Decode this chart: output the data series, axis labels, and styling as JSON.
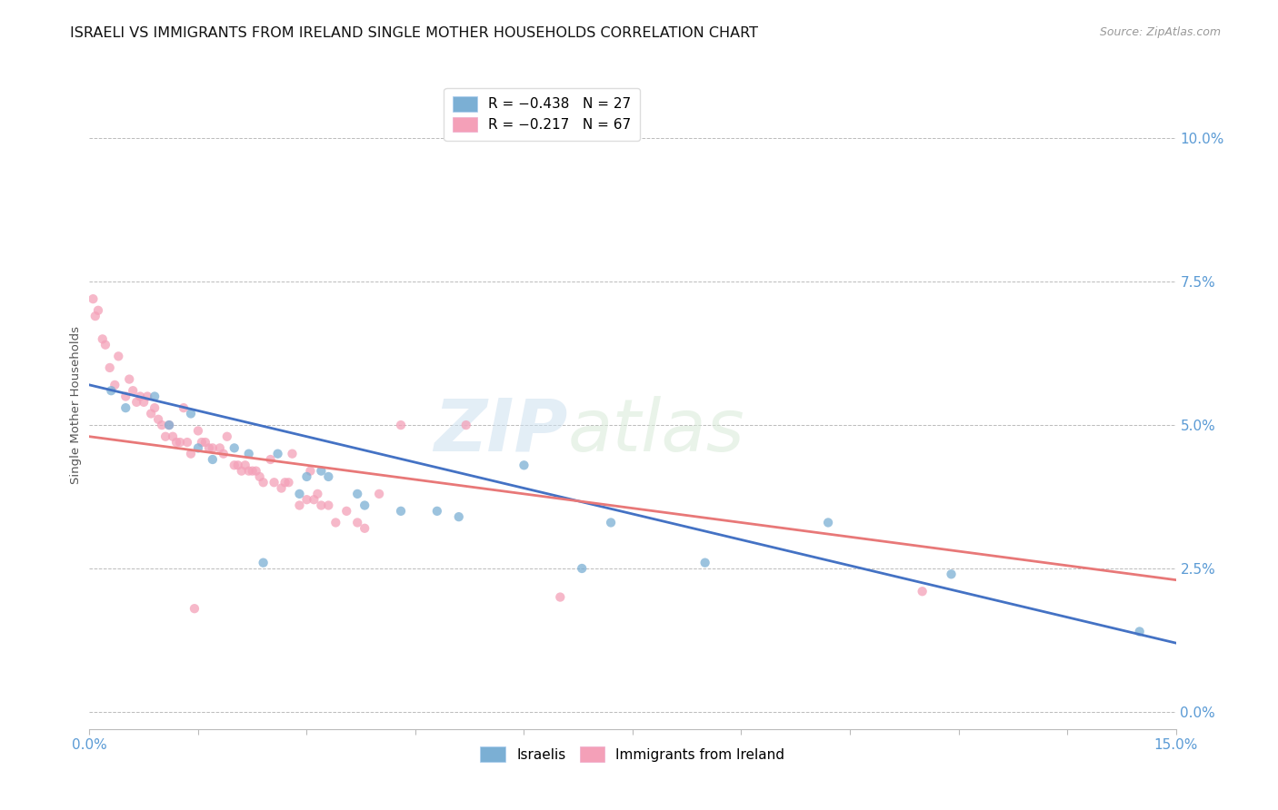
{
  "title": "ISRAELI VS IMMIGRANTS FROM IRELAND SINGLE MOTHER HOUSEHOLDS CORRELATION CHART",
  "source": "Source: ZipAtlas.com",
  "ylabel": "Single Mother Households",
  "ytick_values": [
    0.0,
    2.5,
    5.0,
    7.5,
    10.0
  ],
  "xlim": [
    0.0,
    15.0
  ],
  "ylim": [
    -0.3,
    11.0
  ],
  "legend_entries": [
    {
      "label": "R = −0.438   N = 27",
      "color": "#a8c4e0"
    },
    {
      "label": "R = −0.217   N = 67",
      "color": "#f4a0b8"
    }
  ],
  "israelis_x": [
    0.3,
    0.5,
    0.9,
    1.1,
    1.4,
    1.5,
    1.7,
    2.0,
    2.2,
    2.6,
    3.0,
    3.2,
    3.8,
    4.8,
    5.1,
    6.0,
    7.2,
    8.5,
    10.2,
    11.9,
    14.5,
    2.9,
    3.3,
    3.7,
    4.3,
    6.8,
    2.4
  ],
  "israelis_y": [
    5.6,
    5.3,
    5.5,
    5.0,
    5.2,
    4.6,
    4.4,
    4.6,
    4.5,
    4.5,
    4.1,
    4.2,
    3.6,
    3.5,
    3.4,
    4.3,
    3.3,
    2.6,
    3.3,
    2.4,
    1.4,
    3.8,
    4.1,
    3.8,
    3.5,
    2.5,
    2.6
  ],
  "ireland_x": [
    0.05,
    0.08,
    0.12,
    0.18,
    0.22,
    0.28,
    0.35,
    0.4,
    0.5,
    0.55,
    0.6,
    0.65,
    0.7,
    0.75,
    0.8,
    0.85,
    0.9,
    0.95,
    1.0,
    1.05,
    1.1,
    1.15,
    1.2,
    1.25,
    1.3,
    1.35,
    1.4,
    1.5,
    1.55,
    1.6,
    1.65,
    1.7,
    1.8,
    1.85,
    1.9,
    2.0,
    2.05,
    2.1,
    2.15,
    2.2,
    2.25,
    2.3,
    2.35,
    2.4,
    2.5,
    2.55,
    2.65,
    2.7,
    2.75,
    2.8,
    2.9,
    3.0,
    3.05,
    3.1,
    3.15,
    3.2,
    3.3,
    3.4,
    3.55,
    3.7,
    3.8,
    4.0,
    4.3,
    5.2,
    6.5,
    11.5,
    1.45
  ],
  "ireland_y": [
    7.2,
    6.9,
    7.0,
    6.5,
    6.4,
    6.0,
    5.7,
    6.2,
    5.5,
    5.8,
    5.6,
    5.4,
    5.5,
    5.4,
    5.5,
    5.2,
    5.3,
    5.1,
    5.0,
    4.8,
    5.0,
    4.8,
    4.7,
    4.7,
    5.3,
    4.7,
    4.5,
    4.9,
    4.7,
    4.7,
    4.6,
    4.6,
    4.6,
    4.5,
    4.8,
    4.3,
    4.3,
    4.2,
    4.3,
    4.2,
    4.2,
    4.2,
    4.1,
    4.0,
    4.4,
    4.0,
    3.9,
    4.0,
    4.0,
    4.5,
    3.6,
    3.7,
    4.2,
    3.7,
    3.8,
    3.6,
    3.6,
    3.3,
    3.5,
    3.3,
    3.2,
    3.8,
    5.0,
    5.0,
    2.0,
    2.1,
    1.8
  ],
  "israeli_color": "#7bafd4",
  "ireland_color": "#f4a0b8",
  "israeli_line_color": "#4472c4",
  "ireland_line_color": "#e87878",
  "dot_size": 55,
  "dot_alpha": 0.75,
  "background_color": "#ffffff",
  "watermark_zip": "ZIP",
  "watermark_atlas": "atlas",
  "title_fontsize": 11.5,
  "axis_color": "#5b9bd5",
  "grid_color": "#bbbbbb"
}
